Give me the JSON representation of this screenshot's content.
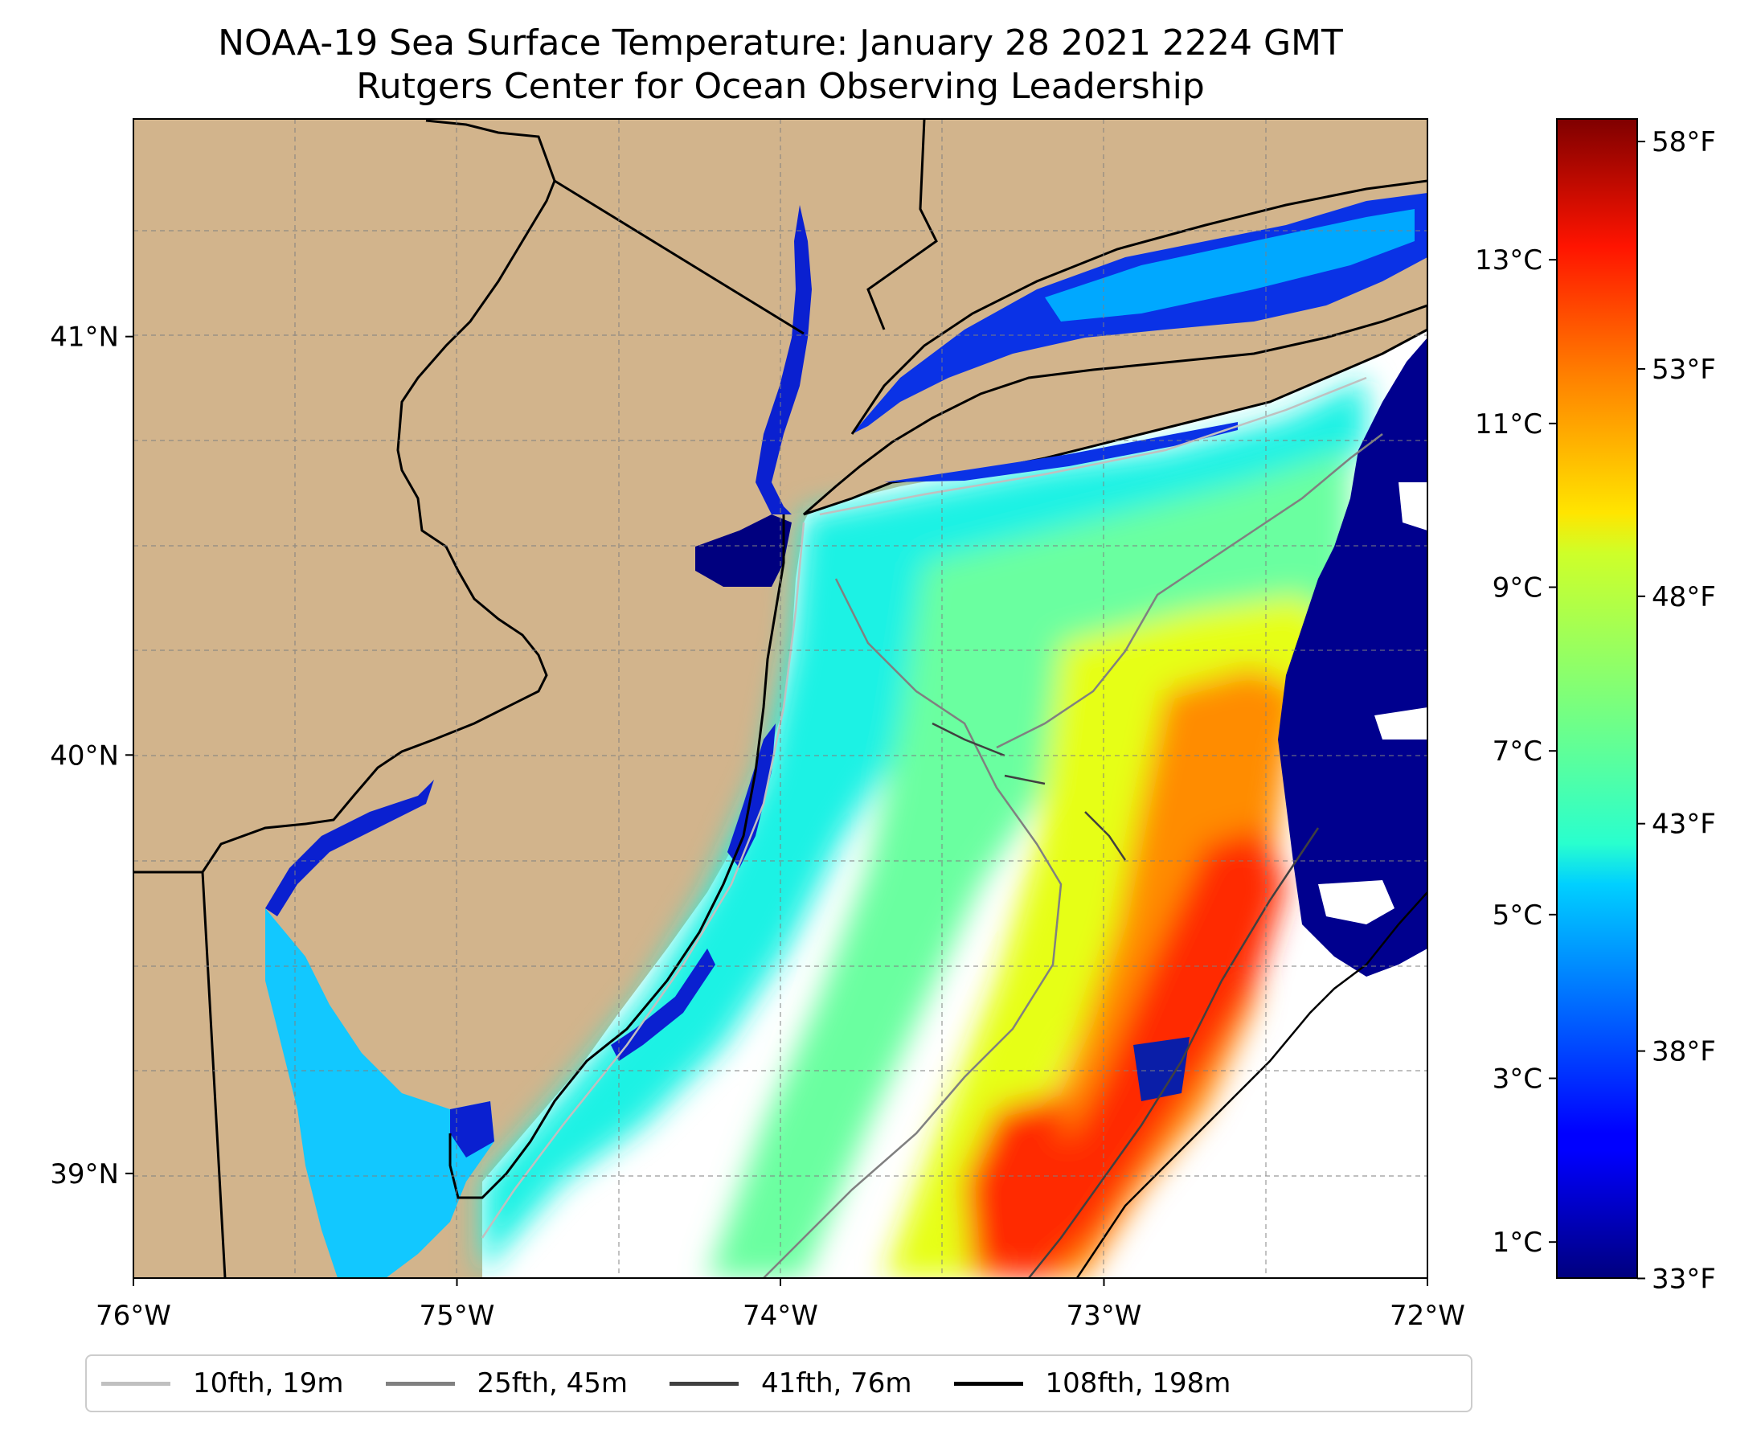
{
  "title": {
    "line1": "NOAA-19 Sea Surface Temperature: January 28 2021 2224 GMT",
    "line2": "Rutgers Center for Ocean Observing Leadership"
  },
  "map": {
    "lon_range": [
      -76,
      -72
    ],
    "lat_range": [
      38.75,
      41.52
    ],
    "lon_ticks": [
      {
        "value": -76,
        "label": "76°W"
      },
      {
        "value": -75,
        "label": "75°W"
      },
      {
        "value": -74,
        "label": "74°W"
      },
      {
        "value": -73,
        "label": "73°W"
      },
      {
        "value": -72,
        "label": "72°W"
      }
    ],
    "lat_ticks": [
      {
        "value": 41,
        "label": "41°N"
      },
      {
        "value": 40,
        "label": "40°N"
      },
      {
        "value": 39,
        "label": "39°N"
      }
    ],
    "grid": "dashed",
    "land_color": "#d2b48c",
    "colormap": "jet",
    "no_data_color": "#ffffff"
  },
  "colorbar": {
    "vmin_c": 0.56,
    "vmax_c": 14.72,
    "celsius_ticks": [
      {
        "value": 1,
        "label": "1°C"
      },
      {
        "value": 3,
        "label": "3°C"
      },
      {
        "value": 5,
        "label": "5°C"
      },
      {
        "value": 7,
        "label": "7°C"
      },
      {
        "value": 9,
        "label": "9°C"
      },
      {
        "value": 11,
        "label": "11°C"
      },
      {
        "value": 13,
        "label": "13°C"
      }
    ],
    "fahrenheit_ticks": [
      {
        "value": 33,
        "label": "33°F"
      },
      {
        "value": 38,
        "label": "38°F"
      },
      {
        "value": 43,
        "label": "43°F"
      },
      {
        "value": 48,
        "label": "48°F"
      },
      {
        "value": 53,
        "label": "53°F"
      },
      {
        "value": 58,
        "label": "58°F"
      }
    ]
  },
  "legend": [
    {
      "label": "10fth, 19m",
      "color": "#c0c0c0"
    },
    {
      "label": "25fth, 45m",
      "color": "#808080"
    },
    {
      "label": "41fth, 76m",
      "color": "#404040"
    },
    {
      "label": "108fth, 198m",
      "color": "#000000"
    }
  ]
}
